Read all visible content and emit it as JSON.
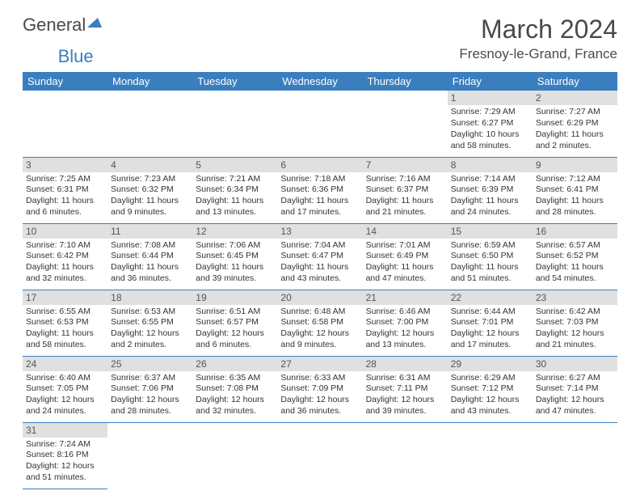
{
  "logo": {
    "word1": "General",
    "word2": "Blue"
  },
  "title": "March 2024",
  "location": "Fresnoy-le-Grand, France",
  "colors": {
    "header_bg": "#3a7ebf",
    "header_text": "#ffffff",
    "daynum_bg": "#e0e0e0",
    "row_border": "#3a7ebf",
    "body_text": "#333333"
  },
  "weekdays": [
    "Sunday",
    "Monday",
    "Tuesday",
    "Wednesday",
    "Thursday",
    "Friday",
    "Saturday"
  ],
  "first_weekday_index": 5,
  "days": [
    {
      "n": 1,
      "sunrise": "7:29 AM",
      "sunset": "6:27 PM",
      "daylight": "10 hours and 58 minutes."
    },
    {
      "n": 2,
      "sunrise": "7:27 AM",
      "sunset": "6:29 PM",
      "daylight": "11 hours and 2 minutes."
    },
    {
      "n": 3,
      "sunrise": "7:25 AM",
      "sunset": "6:31 PM",
      "daylight": "11 hours and 6 minutes."
    },
    {
      "n": 4,
      "sunrise": "7:23 AM",
      "sunset": "6:32 PM",
      "daylight": "11 hours and 9 minutes."
    },
    {
      "n": 5,
      "sunrise": "7:21 AM",
      "sunset": "6:34 PM",
      "daylight": "11 hours and 13 minutes."
    },
    {
      "n": 6,
      "sunrise": "7:18 AM",
      "sunset": "6:36 PM",
      "daylight": "11 hours and 17 minutes."
    },
    {
      "n": 7,
      "sunrise": "7:16 AM",
      "sunset": "6:37 PM",
      "daylight": "11 hours and 21 minutes."
    },
    {
      "n": 8,
      "sunrise": "7:14 AM",
      "sunset": "6:39 PM",
      "daylight": "11 hours and 24 minutes."
    },
    {
      "n": 9,
      "sunrise": "7:12 AM",
      "sunset": "6:41 PM",
      "daylight": "11 hours and 28 minutes."
    },
    {
      "n": 10,
      "sunrise": "7:10 AM",
      "sunset": "6:42 PM",
      "daylight": "11 hours and 32 minutes."
    },
    {
      "n": 11,
      "sunrise": "7:08 AM",
      "sunset": "6:44 PM",
      "daylight": "11 hours and 36 minutes."
    },
    {
      "n": 12,
      "sunrise": "7:06 AM",
      "sunset": "6:45 PM",
      "daylight": "11 hours and 39 minutes."
    },
    {
      "n": 13,
      "sunrise": "7:04 AM",
      "sunset": "6:47 PM",
      "daylight": "11 hours and 43 minutes."
    },
    {
      "n": 14,
      "sunrise": "7:01 AM",
      "sunset": "6:49 PM",
      "daylight": "11 hours and 47 minutes."
    },
    {
      "n": 15,
      "sunrise": "6:59 AM",
      "sunset": "6:50 PM",
      "daylight": "11 hours and 51 minutes."
    },
    {
      "n": 16,
      "sunrise": "6:57 AM",
      "sunset": "6:52 PM",
      "daylight": "11 hours and 54 minutes."
    },
    {
      "n": 17,
      "sunrise": "6:55 AM",
      "sunset": "6:53 PM",
      "daylight": "11 hours and 58 minutes."
    },
    {
      "n": 18,
      "sunrise": "6:53 AM",
      "sunset": "6:55 PM",
      "daylight": "12 hours and 2 minutes."
    },
    {
      "n": 19,
      "sunrise": "6:51 AM",
      "sunset": "6:57 PM",
      "daylight": "12 hours and 6 minutes."
    },
    {
      "n": 20,
      "sunrise": "6:48 AM",
      "sunset": "6:58 PM",
      "daylight": "12 hours and 9 minutes."
    },
    {
      "n": 21,
      "sunrise": "6:46 AM",
      "sunset": "7:00 PM",
      "daylight": "12 hours and 13 minutes."
    },
    {
      "n": 22,
      "sunrise": "6:44 AM",
      "sunset": "7:01 PM",
      "daylight": "12 hours and 17 minutes."
    },
    {
      "n": 23,
      "sunrise": "6:42 AM",
      "sunset": "7:03 PM",
      "daylight": "12 hours and 21 minutes."
    },
    {
      "n": 24,
      "sunrise": "6:40 AM",
      "sunset": "7:05 PM",
      "daylight": "12 hours and 24 minutes."
    },
    {
      "n": 25,
      "sunrise": "6:37 AM",
      "sunset": "7:06 PM",
      "daylight": "12 hours and 28 minutes."
    },
    {
      "n": 26,
      "sunrise": "6:35 AM",
      "sunset": "7:08 PM",
      "daylight": "12 hours and 32 minutes."
    },
    {
      "n": 27,
      "sunrise": "6:33 AM",
      "sunset": "7:09 PM",
      "daylight": "12 hours and 36 minutes."
    },
    {
      "n": 28,
      "sunrise": "6:31 AM",
      "sunset": "7:11 PM",
      "daylight": "12 hours and 39 minutes."
    },
    {
      "n": 29,
      "sunrise": "6:29 AM",
      "sunset": "7:12 PM",
      "daylight": "12 hours and 43 minutes."
    },
    {
      "n": 30,
      "sunrise": "6:27 AM",
      "sunset": "7:14 PM",
      "daylight": "12 hours and 47 minutes."
    },
    {
      "n": 31,
      "sunrise": "7:24 AM",
      "sunset": "8:16 PM",
      "daylight": "12 hours and 51 minutes."
    }
  ],
  "labels": {
    "sunrise": "Sunrise:",
    "sunset": "Sunset:",
    "daylight": "Daylight:"
  }
}
